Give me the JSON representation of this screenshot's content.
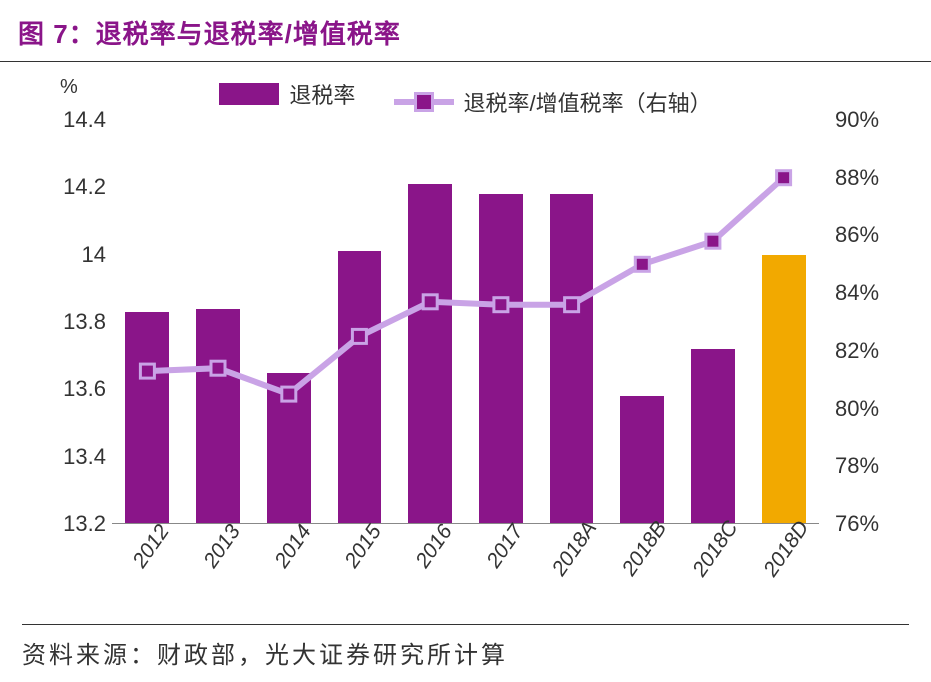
{
  "title": "图 7：退税率与退税率/增值税率",
  "unit_left": "%",
  "legend": {
    "bar_label": "退税率",
    "line_label": "退税率/增值税率（右轴）"
  },
  "source": "资料来源：财政部，光大证券研究所计算",
  "chart": {
    "type": "bar+line",
    "categories": [
      "2012",
      "2013",
      "2014",
      "2015",
      "2016",
      "2017",
      "2018A",
      "2018B",
      "2018C",
      "2018D"
    ],
    "bars": {
      "values": [
        13.83,
        13.84,
        13.65,
        14.01,
        14.21,
        14.18,
        14.18,
        13.58,
        13.72,
        14.0
      ],
      "colors": [
        "#8a1589",
        "#8a1589",
        "#8a1589",
        "#8a1589",
        "#8a1589",
        "#8a1589",
        "#8a1589",
        "#8a1589",
        "#8a1589",
        "#f2a900"
      ],
      "bar_width_frac": 0.62
    },
    "line": {
      "values": [
        81.3,
        81.4,
        80.5,
        82.5,
        83.7,
        83.6,
        83.6,
        85.0,
        85.8,
        88.0
      ],
      "line_color": "#c9a3e6",
      "line_width": 6,
      "marker_fill": "#8a1589",
      "marker_stroke": "#c9a3e6",
      "marker_size": 14,
      "marker_stroke_width": 3
    },
    "y_left": {
      "min": 13.2,
      "max": 14.4,
      "step": 0.2,
      "labels": [
        "13.2",
        "13.4",
        "13.6",
        "13.8",
        "14",
        "14.2",
        "14.4"
      ]
    },
    "y_right": {
      "min": 76,
      "max": 90,
      "step": 2,
      "labels": [
        "76%",
        "78%",
        "80%",
        "82%",
        "84%",
        "86%",
        "88%",
        "90%"
      ]
    },
    "background_color": "#ffffff",
    "axis_color": "#888888",
    "label_fontsize": 22,
    "title_fontsize": 26,
    "title_color": "#8a1589"
  }
}
